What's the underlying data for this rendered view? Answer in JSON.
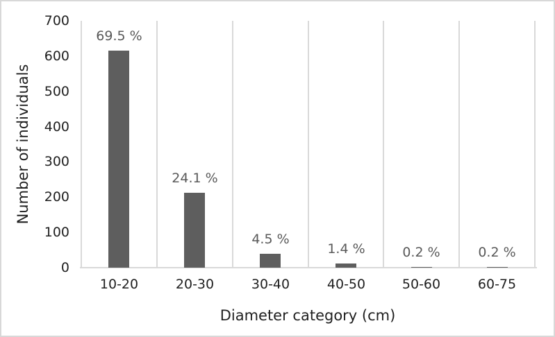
{
  "chart_data": {
    "type": "bar",
    "xlabel": "Diameter category (cm)",
    "ylabel": "Number of individuals",
    "categories": [
      "10-20",
      "20-30",
      "30-40",
      "40-50",
      "50-60",
      "60-75"
    ],
    "values": [
      615,
      213,
      40,
      12,
      2,
      2
    ],
    "bar_labels": [
      "69.5 %",
      "24.1 %",
      "4.5 %",
      "1.4 %",
      "0.2 %",
      "0.2 %"
    ],
    "yticks": [
      0,
      100,
      200,
      300,
      400,
      500,
      600,
      700
    ],
    "ylim": [
      0,
      700
    ],
    "grid": "vertical-category-separators",
    "legend": "none",
    "colors": {
      "bar": "#5e5e5e",
      "bar_label_text": "#595959",
      "axis_text": "#1f1f1f",
      "gridline": "#d9d9d9",
      "axis_line": "#d9d9d9",
      "canvas_border": "#d8d8d8",
      "background": "#ffffff"
    }
  }
}
